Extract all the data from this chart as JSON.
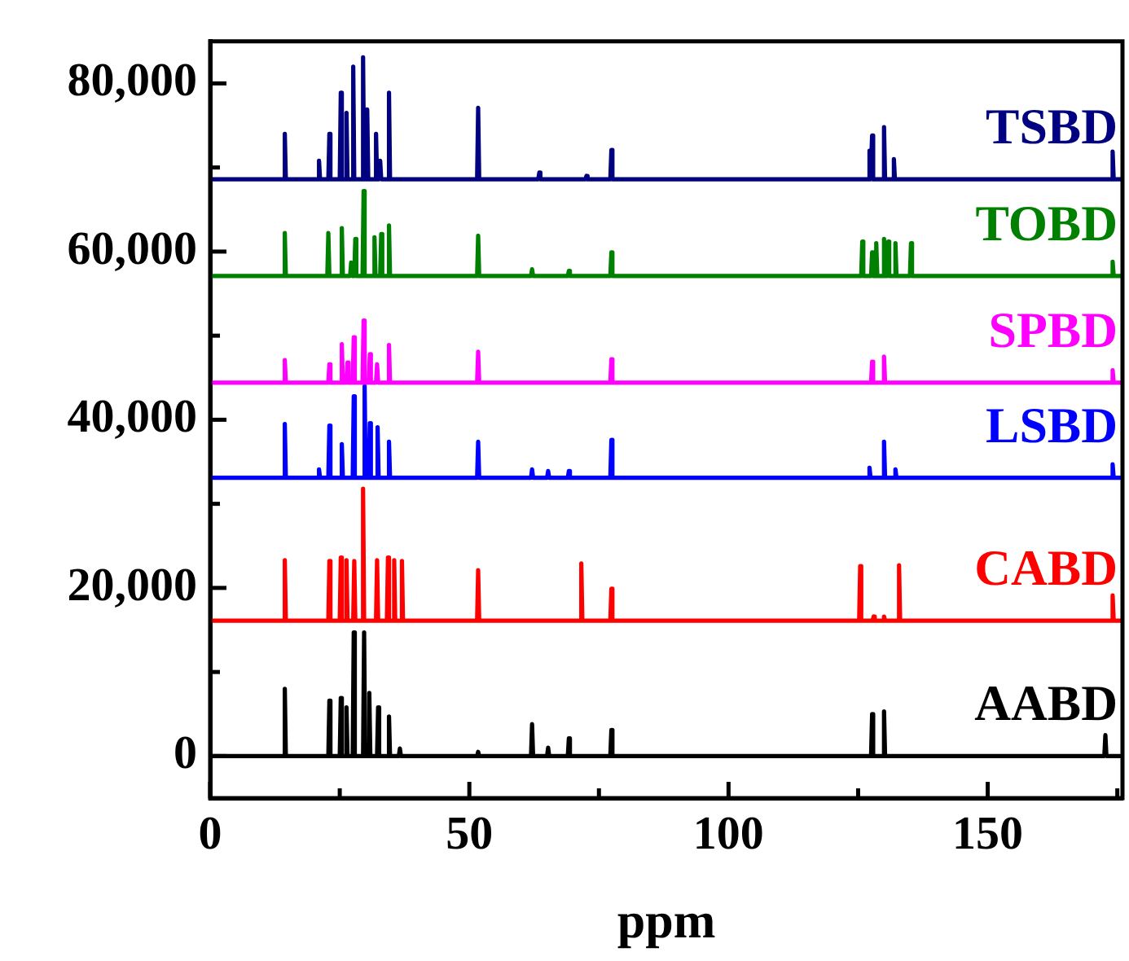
{
  "chart_data": {
    "type": "line",
    "xlabel": "ppm",
    "marker": "none",
    "line_style": "solid",
    "grid": false,
    "xlim": [
      0,
      176
    ],
    "ylim": [
      -5000,
      85000
    ],
    "xticks": [
      0,
      {
        "value": 25,
        "label": null
      },
      50,
      {
        "value": 75,
        "label": null
      },
      100,
      {
        "value": 125,
        "label": null
      },
      150,
      {
        "value": 175,
        "label": null
      }
    ],
    "yticks": [
      0,
      {
        "value": 10000,
        "label": null
      },
      {
        "value": 20000,
        "label": "20,000"
      },
      {
        "value": 30000,
        "label": null
      },
      {
        "value": 40000,
        "label": "40,000"
      },
      {
        "value": 50000,
        "label": null
      },
      {
        "value": 60000,
        "label": "60,000"
      },
      {
        "value": 70000,
        "label": null
      },
      {
        "value": 80000,
        "label": "80,000"
      }
    ],
    "series": [
      {
        "name": "TSBD",
        "color": "#000080",
        "x": [
          0,
          14.2,
          14.4,
          14.6,
          20.8,
          21.0,
          21.2,
          22.8,
          23.0,
          23.2,
          25.0,
          25.2,
          25.4,
          26.1,
          26.3,
          26.5,
          27.4,
          27.6,
          27.8,
          29.3,
          29.5,
          29.7,
          30.1,
          30.3,
          30.5,
          31.8,
          32.0,
          32.2,
          32.6,
          32.8,
          33.0,
          34.3,
          34.5,
          34.7,
          51.5,
          51.7,
          51.9,
          63.3,
          63.5,
          63.7,
          72.4,
          72.6,
          72.8,
          77.2,
          77.4,
          77.6,
          127.0,
          127.2,
          127.4,
          127.5,
          127.7,
          127.9,
          129.8,
          130.0,
          130.2,
          131.7,
          131.9,
          132.1,
          173.9,
          174.1,
          174.3,
          176
        ],
        "values": [
          68600,
          68600,
          74000,
          68600,
          68600,
          70800,
          68600,
          68600,
          74000,
          68600,
          68600,
          78900,
          68600,
          68600,
          76500,
          68600,
          68600,
          82000,
          68600,
          68600,
          83100,
          68600,
          68600,
          76900,
          68600,
          68600,
          74000,
          68600,
          68600,
          70800,
          68600,
          68600,
          78900,
          68600,
          68600,
          77100,
          68600,
          68600,
          69400,
          68600,
          68600,
          69000,
          68600,
          68600,
          72100,
          68600,
          68600,
          72000,
          68600,
          68600,
          73800,
          68600,
          68600,
          74800,
          68600,
          68600,
          71000,
          68600,
          68600,
          71900,
          68600,
          68600
        ]
      },
      {
        "name": "TOBD",
        "color": "#008000",
        "x": [
          0,
          14.2,
          14.4,
          14.6,
          22.6,
          22.8,
          23.0,
          25.2,
          25.4,
          25.6,
          27.0,
          27.2,
          27.4,
          27.8,
          28.0,
          28.2,
          29.4,
          29.6,
          29.8,
          31.5,
          31.7,
          31.9,
          32.8,
          33.0,
          33.2,
          34.3,
          34.5,
          34.7,
          51.5,
          51.7,
          51.9,
          61.9,
          62.1,
          62.3,
          69.0,
          69.2,
          69.4,
          77.2,
          77.4,
          77.6,
          125.6,
          125.8,
          126.0,
          127.5,
          127.7,
          127.9,
          128.3,
          128.5,
          128.7,
          129.8,
          130.0,
          130.2,
          130.6,
          130.8,
          131.0,
          132.0,
          132.2,
          132.4,
          135.0,
          135.2,
          135.4,
          173.9,
          174.1,
          174.3,
          176
        ],
        "values": [
          57100,
          57100,
          62200,
          57100,
          57100,
          62200,
          57100,
          57100,
          62800,
          57100,
          57100,
          58700,
          57100,
          57100,
          61500,
          57100,
          57100,
          67200,
          57100,
          57100,
          61700,
          57100,
          57100,
          62100,
          57100,
          57100,
          63100,
          57100,
          57100,
          61900,
          57100,
          57100,
          57900,
          57100,
          57100,
          57700,
          57100,
          57100,
          59900,
          57100,
          57100,
          61200,
          57100,
          57100,
          59900,
          57100,
          57100,
          61000,
          57100,
          57100,
          61500,
          57100,
          57100,
          61200,
          57100,
          57100,
          61000,
          57100,
          57100,
          61000,
          57100,
          57100,
          58800,
          57100,
          57100
        ]
      },
      {
        "name": "SPBD",
        "color": "#ff00ff",
        "x": [
          0,
          14.2,
          14.4,
          14.6,
          22.8,
          23.0,
          23.2,
          25.2,
          25.4,
          25.6,
          26.3,
          26.5,
          26.7,
          27.5,
          27.7,
          27.9,
          29.4,
          29.6,
          29.8,
          30.6,
          30.8,
          31.0,
          32.0,
          32.2,
          32.4,
          34.3,
          34.5,
          34.7,
          51.5,
          51.7,
          51.9,
          77.2,
          77.4,
          77.6,
          127.5,
          127.7,
          127.9,
          129.8,
          130.0,
          130.2,
          173.9,
          174.1,
          174.3,
          176
        ],
        "values": [
          44400,
          44400,
          47100,
          44400,
          44400,
          46600,
          44400,
          44400,
          49000,
          44400,
          44400,
          46800,
          44400,
          44400,
          49800,
          44400,
          44400,
          51800,
          44400,
          44400,
          47800,
          44400,
          44400,
          46600,
          44400,
          44400,
          48900,
          44400,
          44400,
          48100,
          44400,
          44400,
          47200,
          44400,
          44400,
          46900,
          44400,
          44400,
          47500,
          44400,
          44400,
          45900,
          44400,
          44400
        ]
      },
      {
        "name": "LSBD",
        "color": "#0000ff",
        "x": [
          0,
          14.2,
          14.4,
          14.6,
          20.8,
          21.0,
          21.2,
          22.8,
          23.0,
          23.2,
          25.2,
          25.4,
          25.6,
          27.5,
          27.7,
          27.9,
          29.6,
          29.8,
          30.0,
          30.6,
          30.8,
          31.0,
          32.1,
          32.3,
          32.5,
          34.3,
          34.5,
          34.7,
          51.5,
          51.7,
          51.9,
          61.9,
          62.1,
          62.3,
          65.0,
          65.2,
          65.4,
          69.0,
          69.2,
          69.4,
          77.2,
          77.4,
          77.6,
          127.0,
          127.2,
          127.4,
          129.8,
          130.0,
          130.2,
          132.0,
          132.2,
          132.4,
          173.9,
          174.1,
          174.3,
          176
        ],
        "values": [
          33100,
          33100,
          39500,
          33100,
          33100,
          34100,
          33100,
          33100,
          39300,
          33100,
          33100,
          37100,
          33100,
          33100,
          42800,
          33100,
          33100,
          44000,
          33100,
          33100,
          39600,
          33100,
          33100,
          39100,
          33100,
          33100,
          37400,
          33100,
          33100,
          37400,
          33100,
          33100,
          34100,
          33100,
          33100,
          33900,
          33100,
          33100,
          33900,
          33100,
          33100,
          37600,
          33100,
          33100,
          34300,
          33100,
          33100,
          37400,
          33100,
          33100,
          34100,
          33100,
          33100,
          34700,
          33100,
          33100
        ]
      },
      {
        "name": "CABD",
        "color": "#ff0000",
        "x": [
          0,
          14.2,
          14.4,
          14.6,
          22.8,
          23.0,
          23.2,
          25.0,
          25.2,
          25.4,
          26.1,
          26.3,
          26.5,
          27.6,
          27.8,
          28.0,
          29.3,
          29.5,
          29.7,
          32.0,
          32.2,
          32.4,
          34.1,
          34.3,
          34.5,
          35.3,
          35.5,
          35.7,
          36.8,
          37.0,
          37.2,
          51.5,
          51.7,
          51.9,
          71.4,
          71.6,
          71.8,
          77.2,
          77.4,
          77.6,
          125.2,
          125.4,
          125.6,
          127.8,
          128.0,
          128.2,
          129.8,
          130.0,
          130.2,
          132.7,
          132.9,
          133.1,
          173.9,
          174.1,
          174.3,
          176
        ],
        "values": [
          16100,
          16100,
          23300,
          16100,
          16100,
          23200,
          16100,
          16100,
          23600,
          16100,
          16100,
          23300,
          16100,
          16100,
          23200,
          16100,
          16100,
          31800,
          16100,
          16100,
          23300,
          16100,
          16100,
          23600,
          16100,
          16100,
          23300,
          16100,
          16100,
          23200,
          16100,
          16100,
          22100,
          16100,
          16100,
          22900,
          16100,
          16100,
          19900,
          16100,
          16100,
          22600,
          16100,
          16100,
          16600,
          16100,
          16100,
          16600,
          16100,
          16100,
          22700,
          16100,
          16100,
          19100,
          16100,
          16100
        ]
      },
      {
        "name": "AABD",
        "color": "#000000",
        "x": [
          0,
          14.2,
          14.4,
          14.6,
          22.8,
          23.0,
          23.2,
          25.0,
          25.2,
          25.4,
          26.1,
          26.3,
          26.5,
          27.5,
          27.7,
          27.9,
          29.5,
          29.7,
          29.9,
          30.5,
          30.7,
          30.9,
          32.2,
          32.4,
          32.6,
          34.3,
          34.5,
          34.7,
          36.4,
          36.6,
          36.8,
          51.5,
          51.7,
          51.9,
          61.9,
          62.1,
          62.3,
          65.0,
          65.2,
          65.4,
          69.0,
          69.2,
          69.4,
          77.2,
          77.4,
          77.6,
          127.5,
          127.7,
          127.9,
          129.8,
          130.0,
          130.2,
          172.5,
          172.7,
          172.9,
          176
        ],
        "values": [
          0,
          0,
          8000,
          0,
          0,
          6600,
          0,
          0,
          6900,
          0,
          0,
          5800,
          0,
          0,
          14700,
          0,
          0,
          14700,
          0,
          0,
          7500,
          0,
          0,
          5800,
          0,
          0,
          4700,
          0,
          0,
          900,
          0,
          0,
          500,
          0,
          0,
          3800,
          0,
          0,
          1000,
          0,
          0,
          2100,
          0,
          0,
          3100,
          0,
          0,
          5000,
          0,
          0,
          5300,
          0,
          0,
          2500,
          0,
          0
        ]
      }
    ]
  }
}
